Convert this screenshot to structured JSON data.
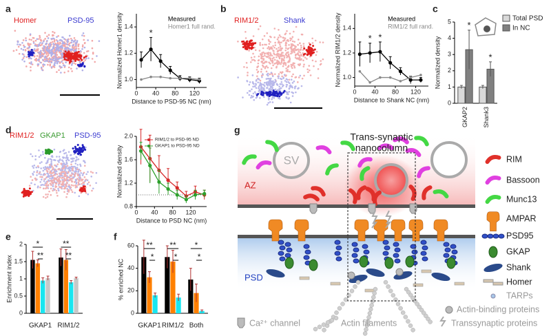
{
  "panel_labels": [
    "a",
    "b",
    "c",
    "d",
    "e",
    "f",
    "g"
  ],
  "image_labels": {
    "a": [
      "Homer",
      "PSD-95"
    ],
    "b": [
      "RIM1/2",
      "Shank"
    ],
    "d": [
      "RIM1/2",
      "GKAP1",
      "PSD-95"
    ]
  },
  "chart_data": [
    {
      "type": "line",
      "x": [
        10,
        30,
        50,
        70,
        90,
        110,
        130
      ],
      "xlim": [
        0,
        145
      ],
      "xticks": [
        0,
        40,
        80,
        120
      ],
      "ylim": [
        0.94,
        1.5
      ],
      "yticks": [
        {
          "value": 1,
          "label": "1.0"
        },
        1.2,
        1.4
      ],
      "xlabel": "Distance to PSD-95 NC (nm)",
      "ylabel": "Normalized Homer1 density",
      "series": [
        {
          "name": "Measured",
          "color": "#000000",
          "values": [
            1.15,
            1.23,
            1.14,
            1.07,
            1.01,
            1.0,
            0.99
          ],
          "errors": [
            0.06,
            0.09,
            0.05,
            0.03,
            0.02,
            0.02,
            0.02
          ]
        },
        {
          "name": "Homer1 full rand.",
          "color": "#888888",
          "values": [
            1.0,
            1.02,
            1.02,
            1.01,
            1.01,
            1.01,
            1.0
          ]
        }
      ],
      "significance": [
        null,
        "*",
        null,
        null,
        null,
        null,
        null
      ]
    },
    {
      "type": "line",
      "x": [
        10,
        30,
        50,
        70,
        90,
        110,
        130
      ],
      "xlim": [
        0,
        145
      ],
      "xticks": [
        0,
        40,
        80,
        120
      ],
      "ylim": [
        0.93,
        1.52
      ],
      "yticks": [
        {
          "value": 1,
          "label": "1.0"
        },
        1.2,
        1.4
      ],
      "xlabel": "Distance to Shank NC (nm)",
      "ylabel": "Normalized RIM1/2 density",
      "series": [
        {
          "name": "Measured",
          "color": "#000000",
          "values": [
            1.19,
            1.2,
            1.21,
            1.12,
            1.05,
            0.98,
            0.98
          ],
          "errors": [
            0.1,
            0.08,
            0.08,
            0.05,
            0.03,
            0.03,
            0.02
          ]
        },
        {
          "name": "RIM1/2 full rand.",
          "color": "#888888",
          "values": [
            1.05,
            0.96,
            1.0,
            1.0,
            0.97,
            1.0,
            1.02
          ]
        }
      ],
      "significance": [
        null,
        "*",
        "*",
        null,
        null,
        null,
        null
      ]
    },
    {
      "type": "bar",
      "categories": [
        "GKAP2",
        "Shank3"
      ],
      "ylim": [
        0,
        5
      ],
      "yticks": [
        0,
        1,
        2,
        3,
        4,
        5
      ],
      "ylabel": "Normalized density",
      "series": [
        {
          "name": "Total PSD",
          "color": "#d9d9d9",
          "values": [
            1,
            1
          ],
          "errors": [
            0.1,
            0.1
          ]
        },
        {
          "name": "In NC",
          "color": "#808080",
          "values": [
            3.3,
            2.1
          ],
          "errors": [
            1.2,
            0.45
          ]
        }
      ],
      "significance": [
        "*",
        "*"
      ]
    },
    {
      "type": "line",
      "x": [
        10,
        30,
        50,
        70,
        90,
        110,
        130,
        150
      ],
      "xlim": [
        0,
        155
      ],
      "xticks": [
        0,
        40,
        80,
        120
      ],
      "ylim": [
        0.8,
        2.0
      ],
      "yticks": [
        0.8,
        1.2,
        1.6,
        {
          "value": 2,
          "label": "2.0"
        }
      ],
      "reference_line": 1,
      "xlabel": "Distance to PSD NC (nm)",
      "ylabel": "Normalized density",
      "series": [
        {
          "name": "RIM1/2 to PSD-95 ND",
          "color": "#d62728",
          "values": [
            1.82,
            1.62,
            1.42,
            1.25,
            1.12,
            0.98,
            1.05,
            1.0
          ],
          "errors": [
            0.3,
            0.4,
            0.25,
            0.2,
            0.1,
            0.08,
            0.1,
            0.08
          ]
        },
        {
          "name": "GKAP1 to PSD-95 ND",
          "color": "#2ca02c",
          "values": [
            1.75,
            1.5,
            1.22,
            1.1,
            1.0,
            0.92,
            1.0,
            1.02
          ],
          "errors": [
            0.15,
            0.3,
            0.2,
            0.1,
            0.08,
            0.06,
            0.08,
            0.06
          ]
        }
      ]
    },
    {
      "type": "bar",
      "categories": [
        "GKAP1",
        "RIM1/2"
      ],
      "ylim": [
        0,
        2
      ],
      "yticks": [
        0,
        0.5,
        1,
        1.5,
        2
      ],
      "ylabel": "Enrichment index",
      "series": [
        {
          "color": "#000000",
          "values": [
            1.55,
            1.62
          ],
          "errors": [
            0.25,
            0.25
          ]
        },
        {
          "color": "#ff8000",
          "values": [
            1.45,
            1.55
          ],
          "errors": [
            0.1,
            0.3
          ]
        },
        {
          "color": "#19e6f0",
          "values": [
            0.95,
            0.9
          ],
          "errors": [
            0.08,
            0.05
          ]
        },
        {
          "color": "#c8c8c8",
          "values": [
            1.02,
            1.02
          ],
          "errors": [
            0.06,
            0.03
          ]
        }
      ],
      "significance_brackets": [
        "*",
        "**",
        "**",
        "**"
      ]
    },
    {
      "type": "bar",
      "categories": [
        "GKAP1",
        "RIM1/2",
        "Both"
      ],
      "ylim": [
        0,
        60
      ],
      "yticks": [
        0,
        20,
        40,
        60
      ],
      "ylabel": "% enriched NC",
      "series": [
        {
          "color": "#000000",
          "values": [
            50,
            50,
            30
          ],
          "errors": [
            15,
            10,
            10
          ]
        },
        {
          "color": "#ff8000",
          "values": [
            32,
            46,
            18
          ],
          "errors": [
            5,
            10,
            8
          ]
        },
        {
          "color": "#19e6f0",
          "values": [
            16,
            14,
            2
          ],
          "errors": [
            2,
            3,
            1
          ]
        }
      ],
      "significance_brackets": [
        "**",
        "*",
        "**",
        "*",
        "*",
        "*"
      ]
    }
  ],
  "diagram": {
    "title": [
      "Trans-synaptic",
      "nanocolumn"
    ],
    "vesicle": "SV",
    "az": "AZ",
    "psd": "PSD",
    "legend": [
      "RIM",
      "Bassoon",
      "Munc13",
      "AMPAR",
      "PSD95",
      "GKAP",
      "Shank",
      "Homer",
      "TARPs",
      "Actin-binding proteins"
    ],
    "bottom_legend": [
      "Ca²⁺ channel",
      "Actin filaments",
      "Transsynaptic proteins"
    ]
  }
}
